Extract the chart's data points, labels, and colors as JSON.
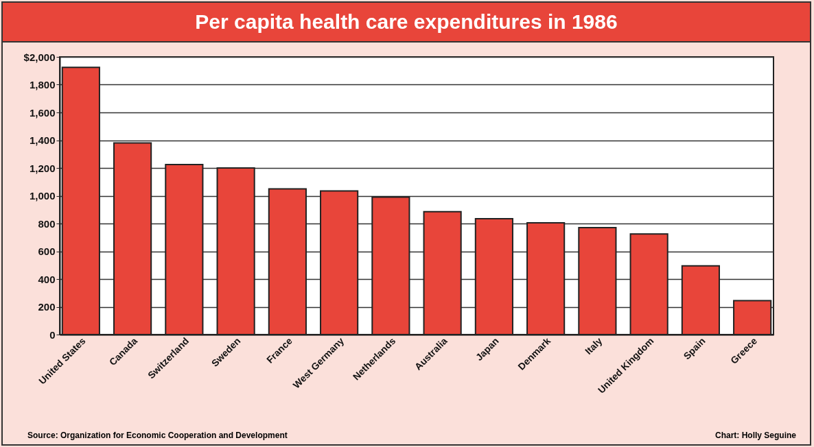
{
  "chart_data": {
    "type": "bar",
    "title": "Per capita health care expenditures in 1986",
    "categories": [
      "United States",
      "Canada",
      "Switzerland",
      "Sweden",
      "France",
      "West Germany",
      "Netherlands",
      "Australia",
      "Japan",
      "Denmark",
      "Italy",
      "United Kingdom",
      "Spain",
      "Greece"
    ],
    "values": [
      1925,
      1380,
      1225,
      1200,
      1050,
      1035,
      990,
      885,
      835,
      805,
      770,
      725,
      495,
      245
    ],
    "color": "#e8453a",
    "ylim": [
      0,
      2000
    ],
    "yticks": [
      0,
      200,
      400,
      600,
      800,
      {
        "value": 1000,
        "label": "1,000"
      },
      {
        "value": 1200,
        "label": "1,200"
      },
      {
        "value": 1400,
        "label": "1,400"
      },
      {
        "value": 1600,
        "label": "1,600"
      },
      {
        "value": 1800,
        "label": "1,800"
      },
      {
        "value": 2000,
        "label": "$2,000"
      }
    ],
    "grid": "y",
    "annotations": [
      "Source: Organization for Economic Cooperation and Development",
      "Chart: Holly Seguine"
    ]
  }
}
